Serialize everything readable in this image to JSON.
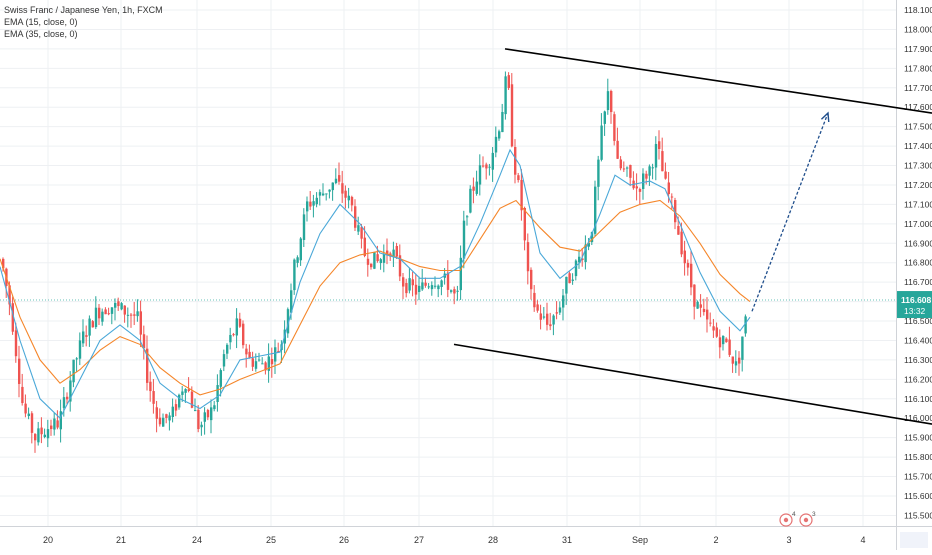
{
  "legend": {
    "title": "Swiss Franc / Japanese Yen, 1h, FXCM",
    "ema15": "EMA (15, close, 0)",
    "ema35": "EMA (35, close, 0)"
  },
  "price_badge": {
    "price": "116.608",
    "countdown": "13:32"
  },
  "event_badges": {
    "a": "4",
    "b": "3"
  },
  "colors": {
    "up": "#26a69a",
    "down": "#ef5350",
    "ema15": "#4aa8d8",
    "ema35": "#f5862a",
    "price_line": "#26a69a",
    "channel": "#000000",
    "arrow": "#1f4e8c",
    "grid": "#eef0f3",
    "axis_text": "#333333"
  },
  "chart_data": {
    "type": "candlestick",
    "symbol": "Swiss Franc / Japanese Yen",
    "interval": "1h",
    "exchange": "FXCM",
    "ylim": [
      115.45,
      118.15
    ],
    "y_ticks": [
      "118.100",
      "118.000",
      "117.900",
      "117.800",
      "117.700",
      "117.600",
      "117.500",
      "117.400",
      "117.300",
      "117.200",
      "117.100",
      "117.000",
      "116.900",
      "116.800",
      "116.700",
      "116.600",
      "116.500",
      "116.400",
      "116.300",
      "116.200",
      "116.100",
      "116.000",
      "115.900",
      "115.800",
      "115.700",
      "115.600",
      "115.500"
    ],
    "x_labels": [
      "20",
      "21",
      "24",
      "25",
      "26",
      "27",
      "28",
      "31",
      "Sep",
      "2",
      "3",
      "4"
    ],
    "current_price": 116.608,
    "grid": true,
    "price_path": [
      [
        0,
        116.82
      ],
      [
        10,
        116.55
      ],
      [
        22,
        116.05
      ],
      [
        34,
        115.9
      ],
      [
        46,
        115.95
      ],
      [
        58,
        115.98
      ],
      [
        70,
        116.22
      ],
      [
        82,
        116.42
      ],
      [
        96,
        116.55
      ],
      [
        110,
        116.58
      ],
      [
        124,
        116.55
      ],
      [
        136,
        116.52
      ],
      [
        146,
        116.22
      ],
      [
        156,
        116.0
      ],
      [
        170,
        116.0
      ],
      [
        184,
        116.2
      ],
      [
        198,
        115.95
      ],
      [
        212,
        116.05
      ],
      [
        224,
        116.35
      ],
      [
        236,
        116.48
      ],
      [
        248,
        116.3
      ],
      [
        264,
        116.28
      ],
      [
        280,
        116.38
      ],
      [
        294,
        116.8
      ],
      [
        306,
        117.1
      ],
      [
        320,
        117.15
      ],
      [
        334,
        117.22
      ],
      [
        350,
        117.1
      ],
      [
        362,
        116.85
      ],
      [
        376,
        116.8
      ],
      [
        390,
        116.88
      ],
      [
        402,
        116.7
      ],
      [
        416,
        116.65
      ],
      [
        432,
        116.72
      ],
      [
        446,
        116.7
      ],
      [
        456,
        116.6
      ],
      [
        464,
        117.05
      ],
      [
        476,
        117.25
      ],
      [
        490,
        117.35
      ],
      [
        500,
        117.55
      ],
      [
        506,
        117.78
      ],
      [
        512,
        117.35
      ],
      [
        520,
        117.1
      ],
      [
        528,
        116.65
      ],
      [
        536,
        116.55
      ],
      [
        546,
        116.48
      ],
      [
        556,
        116.55
      ],
      [
        566,
        116.7
      ],
      [
        578,
        116.82
      ],
      [
        590,
        116.95
      ],
      [
        600,
        117.45
      ],
      [
        608,
        117.7
      ],
      [
        616,
        117.3
      ],
      [
        626,
        117.25
      ],
      [
        636,
        117.18
      ],
      [
        648,
        117.28
      ],
      [
        656,
        117.4
      ],
      [
        664,
        117.2
      ],
      [
        672,
        117.08
      ],
      [
        684,
        116.8
      ],
      [
        694,
        116.6
      ],
      [
        704,
        116.5
      ],
      [
        716,
        116.42
      ],
      [
        726,
        116.38
      ],
      [
        736,
        116.25
      ],
      [
        742,
        116.45
      ],
      [
        750,
        116.62
      ]
    ],
    "ema15": [
      [
        0,
        116.78
      ],
      [
        20,
        116.4
      ],
      [
        40,
        116.1
      ],
      [
        60,
        116.0
      ],
      [
        80,
        116.2
      ],
      [
        100,
        116.4
      ],
      [
        120,
        116.48
      ],
      [
        140,
        116.4
      ],
      [
        160,
        116.18
      ],
      [
        180,
        116.1
      ],
      [
        200,
        116.05
      ],
      [
        220,
        116.12
      ],
      [
        240,
        116.3
      ],
      [
        260,
        116.32
      ],
      [
        280,
        116.34
      ],
      [
        300,
        116.7
      ],
      [
        320,
        116.95
      ],
      [
        340,
        117.1
      ],
      [
        360,
        117.0
      ],
      [
        380,
        116.85
      ],
      [
        400,
        116.82
      ],
      [
        420,
        116.72
      ],
      [
        440,
        116.72
      ],
      [
        460,
        116.78
      ],
      [
        480,
        117.0
      ],
      [
        500,
        117.25
      ],
      [
        510,
        117.38
      ],
      [
        520,
        117.3
      ],
      [
        540,
        116.85
      ],
      [
        560,
        116.72
      ],
      [
        580,
        116.8
      ],
      [
        600,
        117.05
      ],
      [
        615,
        117.25
      ],
      [
        630,
        117.2
      ],
      [
        650,
        117.22
      ],
      [
        665,
        117.18
      ],
      [
        680,
        117.0
      ],
      [
        700,
        116.75
      ],
      [
        720,
        116.55
      ],
      [
        740,
        116.45
      ],
      [
        750,
        116.52
      ]
    ],
    "ema35": [
      [
        0,
        116.82
      ],
      [
        20,
        116.52
      ],
      [
        40,
        116.3
      ],
      [
        60,
        116.18
      ],
      [
        80,
        116.25
      ],
      [
        100,
        116.35
      ],
      [
        120,
        116.42
      ],
      [
        140,
        116.38
      ],
      [
        160,
        116.26
      ],
      [
        180,
        116.18
      ],
      [
        200,
        116.12
      ],
      [
        220,
        116.15
      ],
      [
        240,
        116.2
      ],
      [
        260,
        116.24
      ],
      [
        280,
        116.28
      ],
      [
        300,
        116.48
      ],
      [
        320,
        116.68
      ],
      [
        340,
        116.8
      ],
      [
        360,
        116.84
      ],
      [
        380,
        116.86
      ],
      [
        400,
        116.82
      ],
      [
        420,
        116.78
      ],
      [
        440,
        116.76
      ],
      [
        460,
        116.76
      ],
      [
        480,
        116.92
      ],
      [
        500,
        117.08
      ],
      [
        516,
        117.12
      ],
      [
        540,
        116.98
      ],
      [
        560,
        116.88
      ],
      [
        580,
        116.86
      ],
      [
        600,
        116.96
      ],
      [
        620,
        117.06
      ],
      [
        640,
        117.1
      ],
      [
        660,
        117.12
      ],
      [
        680,
        117.04
      ],
      [
        700,
        116.9
      ],
      [
        720,
        116.74
      ],
      [
        740,
        116.64
      ],
      [
        750,
        116.6
      ]
    ],
    "channel_upper": [
      [
        505,
        117.9
      ],
      [
        932,
        117.57
      ]
    ],
    "channel_lower": [
      [
        454,
        116.38
      ],
      [
        932,
        115.97
      ]
    ],
    "projection_arrow": [
      [
        752,
        116.55
      ],
      [
        828,
        117.57
      ]
    ]
  }
}
